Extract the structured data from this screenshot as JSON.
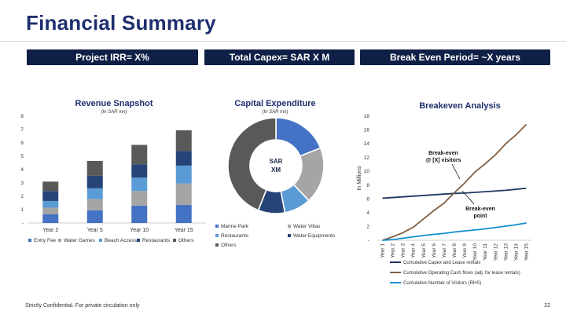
{
  "page": {
    "title": "Financial Summary",
    "footer": "Strictly Confidential. For private circulation only",
    "page_number": "22"
  },
  "kpis": {
    "irr": "Project IRR= X%",
    "capex": "Total Capex= SAR X M",
    "breakeven": "Break Even Period= ~X years"
  },
  "colors": {
    "navy": "#0f1f45",
    "title_blue": "#1f2f6e",
    "entry_fee": "#4472c4",
    "water_games": "#a5a5a5",
    "beach_access": "#5b9bd5",
    "restaurants": "#264478",
    "others": "#595959",
    "capex_line": "#1f3864",
    "cash_flow_line": "#7f5f45",
    "visitors_line": "#0f8fd0"
  },
  "chart_data": [
    {
      "type": "bar",
      "stacked": true,
      "title": "Revenue Snapshot",
      "subtitle": "(In SAR mn)",
      "categories": [
        "Year 2",
        "Year 5",
        "Year 10",
        "Year 15"
      ],
      "ylim": [
        0,
        8
      ],
      "yticks": [
        "-",
        "1",
        "2",
        "3",
        "4",
        "5",
        "6",
        "7",
        "8"
      ],
      "series": [
        {
          "name": "Entry Fee",
          "color": "#4472c4",
          "values": [
            0.65,
            0.95,
            1.3,
            1.35
          ]
        },
        {
          "name": "Water Games",
          "color": "#a5a5a5",
          "values": [
            0.5,
            0.85,
            1.1,
            1.6
          ]
        },
        {
          "name": "Beach Access",
          "color": "#5b9bd5",
          "values": [
            0.5,
            0.8,
            1.0,
            1.35
          ]
        },
        {
          "name": "Restaurants",
          "color": "#264478",
          "values": [
            0.75,
            0.95,
            1.0,
            1.1
          ]
        },
        {
          "name": "Others",
          "color": "#595959",
          "values": [
            0.7,
            1.1,
            1.45,
            1.55
          ]
        }
      ]
    },
    {
      "type": "pie",
      "donut": true,
      "title": "Capital Expenditure",
      "subtitle": "(In SAR mn)",
      "center_label": [
        "SAR",
        "XM"
      ],
      "slices": [
        {
          "name": "Marine Park",
          "color": "#4472c4",
          "value": 19
        },
        {
          "name": "Water Villas",
          "color": "#a5a5a5",
          "value": 19
        },
        {
          "name": "Restaurants",
          "color": "#5b9bd5",
          "value": 9
        },
        {
          "name": "Water Equipments",
          "color": "#264478",
          "value": 9
        },
        {
          "name": "Others",
          "color": "#595959",
          "value": 44
        }
      ]
    },
    {
      "type": "line",
      "title": "Breakeven Analysis",
      "ylabel": "In Millions",
      "ylim": [
        0,
        18
      ],
      "yticks": [
        "-",
        "2",
        "4",
        "6",
        "8",
        "10",
        "12",
        "14",
        "16",
        "18"
      ],
      "categories": [
        "Year 1",
        "Year 2",
        "Year 3",
        "Year 4",
        "Year 5",
        "Year 6",
        "Year 7",
        "Year 8",
        "Year 9",
        "Year 10",
        "Year 11",
        "Year 12",
        "Year 13",
        "Year 14",
        "Year 15"
      ],
      "series": [
        {
          "name": "Cumulative Capex and Lease rentals",
          "color": "#1f3864",
          "values": [
            6.1,
            6.2,
            6.3,
            6.4,
            6.5,
            6.6,
            6.7,
            6.8,
            6.85,
            6.95,
            7.05,
            7.15,
            7.25,
            7.4,
            7.55
          ]
        },
        {
          "name": "Cumulative Operating Cash flows (adj. for lease rentals)",
          "color": "#7f5f45",
          "values": [
            0,
            0.5,
            1.1,
            1.9,
            3.1,
            4.3,
            5.4,
            6.9,
            8.3,
            9.9,
            11.1,
            12.4,
            14.0,
            15.3,
            16.8
          ]
        },
        {
          "name": "Cumulative Number of Visitors (RHS)",
          "color": "#0f8fd0",
          "values": [
            0,
            0.1,
            0.3,
            0.5,
            0.7,
            0.85,
            1.0,
            1.2,
            1.35,
            1.5,
            1.65,
            1.85,
            2.05,
            2.25,
            2.5
          ]
        }
      ],
      "annotations": [
        "Break-even @ [X] visitors",
        "Break-even point"
      ]
    }
  ]
}
